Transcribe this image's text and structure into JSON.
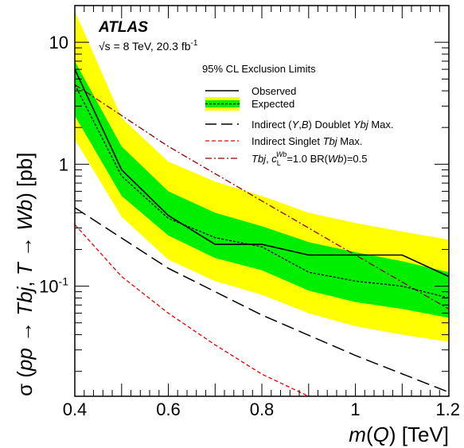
{
  "chart_data": {
    "type": "line",
    "experiment": "ATLAS",
    "energy_text": "√s = 8 TeV, 20.3 fb",
    "energy_sup": "-1",
    "subtitle": "95% CL Exclusion Limits",
    "xlabel": "m(Q) [TeV]",
    "ylabel": "σ (pp → Tbj, T → Wb) [pb]",
    "xlim": [
      0.4,
      1.2
    ],
    "ylim": [
      0.0125,
      20
    ],
    "yscale": "log",
    "x_ticks": [
      {
        "value": 0.4,
        "label": "0.4"
      },
      {
        "value": 0.6,
        "label": "0.6"
      },
      {
        "value": 0.8,
        "label": "0.8"
      },
      {
        "value": 1.0,
        "label": "1"
      },
      {
        "value": 1.2,
        "label": "1.2"
      }
    ],
    "y_ticks": [
      {
        "value": 0.1,
        "label": "10",
        "sup": "-1"
      },
      {
        "value": 1,
        "label": "1",
        "sup": ""
      },
      {
        "value": 10,
        "label": "10",
        "sup": ""
      }
    ],
    "legend_placement": "top-right",
    "colors": {
      "band_2sigma": "#ffff00",
      "band_1sigma": "#00ee00",
      "observed": "#000000",
      "expected": "#000000",
      "doublet": "#000000",
      "singlet": "#ee0000",
      "theory": "#990000"
    },
    "legend": [
      {
        "key": "observed",
        "text": "Observed"
      },
      {
        "key": "expected",
        "text": "Expected"
      },
      {
        "key": "doublet",
        "text": "Indirect (Y,B) Doublet Ybj Max."
      },
      {
        "key": "singlet",
        "text": "Indirect Singlet Tbj Max."
      },
      {
        "key": "theory",
        "text": "Tbj, c_L^Wb=1.0 BR(Wb)=0.5"
      }
    ],
    "x": [
      0.4,
      0.5,
      0.6,
      0.7,
      0.8,
      0.9,
      1.0,
      1.1,
      1.2
    ],
    "band_2sigma_upper": [
      18.0,
      2.4,
      1.05,
      0.72,
      0.55,
      0.4,
      0.33,
      0.28,
      0.24
    ],
    "band_1sigma_upper": [
      7.0,
      1.4,
      0.6,
      0.4,
      0.31,
      0.23,
      0.19,
      0.16,
      0.13
    ],
    "band_1sigma_lower": [
      2.5,
      0.55,
      0.26,
      0.17,
      0.135,
      0.092,
      0.074,
      0.065,
      0.055
    ],
    "band_2sigma_lower": [
      1.6,
      0.37,
      0.165,
      0.11,
      0.085,
      0.06,
      0.047,
      0.04,
      0.035
    ],
    "series": [
      {
        "name": "Observed",
        "key": "observed",
        "x": [
          0.4,
          0.5,
          0.6,
          0.7,
          0.8,
          0.9,
          1.0,
          1.1,
          1.2
        ],
        "values": [
          6.0,
          0.9,
          0.38,
          0.22,
          0.22,
          0.18,
          0.18,
          0.18,
          0.12
        ]
      },
      {
        "name": "Expected",
        "key": "expected",
        "x": [
          0.4,
          0.5,
          0.6,
          0.7,
          0.8,
          0.9,
          1.0,
          1.1,
          1.2
        ],
        "values": [
          4.5,
          0.8,
          0.36,
          0.25,
          0.21,
          0.13,
          0.11,
          0.1,
          0.08
        ]
      },
      {
        "name": "Indirect (Y,B) Doublet Ybj Max.",
        "key": "doublet",
        "x": [
          0.4,
          0.6,
          0.8,
          1.0,
          1.2
        ],
        "values": [
          0.44,
          0.14,
          0.058,
          0.027,
          0.0135
        ]
      },
      {
        "name": "Indirect Singlet Tbj Max.",
        "key": "singlet",
        "x": [
          0.4,
          0.5,
          0.6,
          0.7,
          0.8,
          0.9
        ],
        "values": [
          0.32,
          0.12,
          0.06,
          0.033,
          0.019,
          0.0125
        ]
      },
      {
        "name": "Tbj, c_L^Wb=1.0 BR(Wb)=0.5",
        "key": "theory",
        "x": [
          0.4,
          0.6,
          0.8,
          1.0,
          1.2
        ],
        "values": [
          4.5,
          1.4,
          0.5,
          0.18,
          0.065
        ]
      }
    ]
  }
}
